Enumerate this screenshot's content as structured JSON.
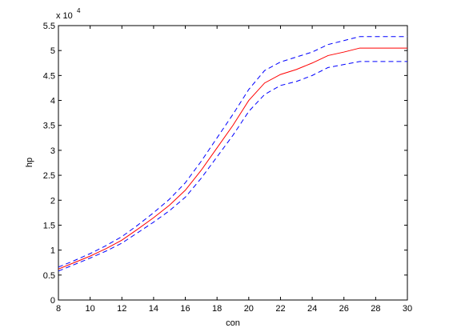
{
  "chart_data": {
    "type": "line",
    "xlabel": "con",
    "ylabel": "hp",
    "y_multiplier": "x 10",
    "y_multiplier_exponent": "4",
    "x": [
      8,
      9,
      10,
      11,
      12,
      13,
      14,
      15,
      16,
      17,
      18,
      19,
      20,
      21,
      22,
      23,
      24,
      25,
      26,
      27,
      28,
      29,
      30
    ],
    "series": [
      {
        "color": "#0000ff",
        "dashed": true,
        "values": [
          0.66,
          0.79,
          0.93,
          1.09,
          1.27,
          1.5,
          1.75,
          2.02,
          2.35,
          2.78,
          3.25,
          3.72,
          4.22,
          4.6,
          4.77,
          4.87,
          4.97,
          5.12,
          5.2,
          5.28,
          5.28,
          5.28,
          5.28
        ]
      },
      {
        "color": "#ff0000",
        "dashed": false,
        "values": [
          0.62,
          0.75,
          0.88,
          1.03,
          1.2,
          1.42,
          1.65,
          1.9,
          2.2,
          2.6,
          3.05,
          3.5,
          4.0,
          4.35,
          4.52,
          4.62,
          4.75,
          4.9,
          4.97,
          5.05,
          5.05,
          5.05,
          5.05
        ]
      },
      {
        "color": "#0000ff",
        "dashed": true,
        "values": [
          0.58,
          0.71,
          0.84,
          0.98,
          1.14,
          1.35,
          1.56,
          1.79,
          2.06,
          2.44,
          2.87,
          3.3,
          3.78,
          4.12,
          4.3,
          4.38,
          4.5,
          4.66,
          4.72,
          4.78,
          4.78,
          4.78,
          4.78
        ]
      }
    ],
    "xlim": [
      8,
      30
    ],
    "xticks": [
      8,
      10,
      12,
      14,
      16,
      18,
      20,
      22,
      24,
      26,
      28,
      30
    ],
    "ylim": [
      0,
      5.5
    ],
    "yticks": [
      0,
      0.5,
      1,
      1.5,
      2,
      2.5,
      3,
      3.5,
      4,
      4.5,
      5,
      5.5
    ],
    "grid": false
  }
}
